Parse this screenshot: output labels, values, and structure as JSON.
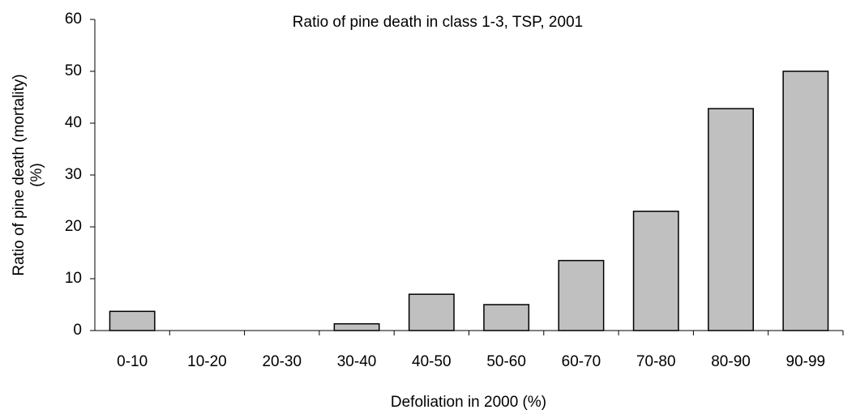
{
  "chart_data": {
    "type": "bar",
    "title": "Ratio of pine death in class 1-3, TSP, 2001",
    "x_label": "Defoliation in 2000 (%)",
    "y_label": [
      "Ratio of pine death (mortality)",
      "(%)"
    ],
    "categories": [
      "0-10",
      "10-20",
      "20-30",
      "30-40",
      "40-50",
      "50-60",
      "60-70",
      "70-80",
      "80-90",
      "90-99"
    ],
    "values": [
      3.7,
      0,
      0,
      1.3,
      7,
      5,
      13.5,
      23,
      42.8,
      50
    ],
    "color": "#c0c0c0",
    "ylim": [
      0,
      60
    ],
    "yticks": [
      0,
      10,
      20,
      30,
      40,
      50,
      60
    ],
    "grid": false
  }
}
